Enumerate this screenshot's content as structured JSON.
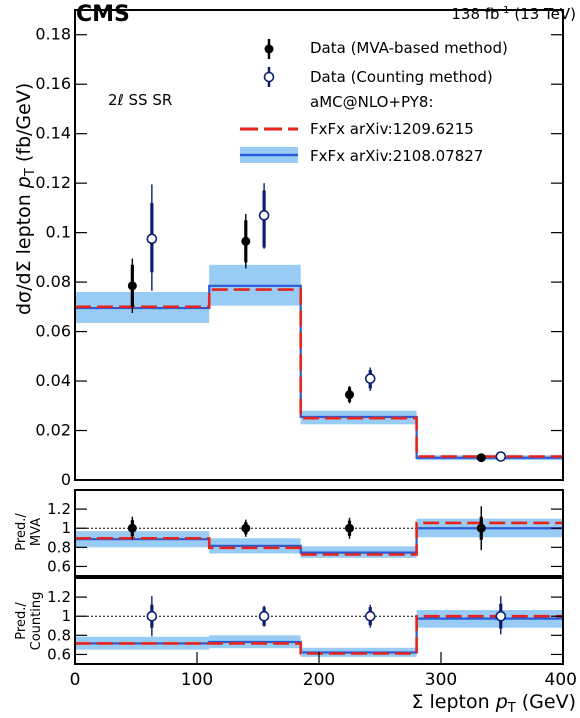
{
  "header": {
    "experiment": "CMS",
    "lumi_main": "138 fb",
    "lumi_sup": "-1",
    "lumi_tail": " (13 TeV)"
  },
  "colors": {
    "data_mva": "#000000",
    "data_counting": "#0b1f6b",
    "fxfx_old": "#e8231b",
    "fxfx_new_line": "#2a5bd7",
    "fxfx_new_band": "#99ccf5"
  },
  "chart_data": [
    {
      "type": "step",
      "panel": "main",
      "annotation": "2ℓ SS SR",
      "ylabel_parts": [
        "dσ/dΣ lepton ",
        "p",
        "T",
        " (fb/GeV)"
      ],
      "ylim": [
        0,
        0.19
      ],
      "yticks": [
        0,
        0.02,
        0.04,
        0.06,
        0.08,
        0.1,
        0.12,
        0.14,
        0.16,
        0.18
      ],
      "ytick_labels": [
        "0",
        "0.02",
        "0.04",
        "0.06",
        "0.08",
        "0.1",
        "0.12",
        "0.14",
        "0.16",
        "0.18"
      ],
      "xlim": [
        0,
        400
      ],
      "bin_edges": [
        0,
        110,
        185,
        280,
        400
      ],
      "legend_placement": "top-right",
      "legend": [
        {
          "kind": "point_filled",
          "label": "Data (MVA-based method)"
        },
        {
          "kind": "point_open",
          "label": "Data (Counting method)"
        },
        {
          "kind": "text",
          "label": "aMC@NLO+PY8:"
        },
        {
          "kind": "dashed",
          "label": "FxFx arXiv:1209.6215"
        },
        {
          "kind": "band",
          "label": "FxFx arXiv:2108.07827"
        }
      ],
      "series": [
        {
          "name": "FxFx arXiv:2108.07827",
          "style": "band",
          "values": [
            0.0695,
            0.0785,
            0.0255,
            0.009
          ],
          "band_low": [
            0.0635,
            0.0705,
            0.0225,
            0.008
          ],
          "band_high": [
            0.076,
            0.087,
            0.028,
            0.01
          ]
        },
        {
          "name": "FxFx arXiv:1209.6215",
          "style": "dashed",
          "values": [
            0.07,
            0.077,
            0.025,
            0.0095
          ]
        },
        {
          "name": "Data (MVA-based method)",
          "style": "filled",
          "x": [
            47,
            140,
            225,
            333
          ],
          "y": [
            0.0785,
            0.0965,
            0.0345,
            0.009
          ],
          "stat_low": [
            0.07,
            0.088,
            0.0315,
            0.008
          ],
          "stat_high": [
            0.087,
            0.105,
            0.0375,
            0.01
          ],
          "tot_low": [
            0.0675,
            0.0855,
            0.031,
            0.0076
          ],
          "tot_high": [
            0.0895,
            0.1075,
            0.038,
            0.0104
          ]
        },
        {
          "name": "Data (Counting method)",
          "style": "open",
          "x": [
            63,
            155,
            242,
            349
          ],
          "y": [
            0.0975,
            0.107,
            0.041,
            0.0095
          ],
          "stat_low": [
            0.084,
            0.094,
            0.037,
            0.0084
          ],
          "stat_high": [
            0.112,
            0.117,
            0.0445,
            0.0106
          ],
          "tot_low": [
            0.0765,
            0.0935,
            0.036,
            0.008
          ],
          "tot_high": [
            0.1195,
            0.12,
            0.0455,
            0.011
          ]
        }
      ]
    },
    {
      "type": "step",
      "panel": "ratio_mva",
      "ylabel_lines": [
        "Pred./",
        "MVA"
      ],
      "ylim": [
        0.5,
        1.4
      ],
      "yticks": [
        0.6,
        0.8,
        1.0,
        1.2
      ],
      "ytick_labels": [
        "0.6",
        "0.8",
        "1",
        "1.2"
      ],
      "reference_line": 1,
      "bin_edges": [
        0,
        110,
        185,
        280,
        400
      ],
      "series": [
        {
          "name": "FxFx arXiv:2108.07827",
          "style": "band",
          "values": [
            0.885,
            0.815,
            0.745,
            1.0
          ],
          "band_low": [
            0.8,
            0.735,
            0.69,
            0.905
          ],
          "band_high": [
            0.97,
            0.895,
            0.81,
            1.1
          ]
        },
        {
          "name": "FxFx arXiv:1209.6215",
          "style": "dashed",
          "values": [
            0.895,
            0.795,
            0.725,
            1.055
          ]
        },
        {
          "name": "Data (MVA-based method)",
          "style": "filled",
          "x": [
            47,
            140,
            225,
            333
          ],
          "y": [
            1.0,
            1.0,
            1.0,
            1.0
          ],
          "stat_low": [
            0.915,
            0.935,
            0.92,
            0.88
          ],
          "stat_high": [
            1.085,
            1.065,
            1.08,
            1.12
          ],
          "tot_low": [
            0.88,
            0.91,
            0.89,
            0.77
          ],
          "tot_high": [
            1.12,
            1.09,
            1.11,
            1.23
          ]
        }
      ]
    },
    {
      "type": "step",
      "panel": "ratio_counting",
      "ylabel_lines": [
        "Pred./",
        "Counting"
      ],
      "ylim": [
        0.5,
        1.4
      ],
      "yticks": [
        0.6,
        0.8,
        1.0,
        1.2
      ],
      "ytick_labels": [
        "0.6",
        "0.8",
        "1",
        "1.2"
      ],
      "reference_line": 1,
      "xlabel_parts": [
        "Σ lepton ",
        "p",
        "T",
        " (GeV)"
      ],
      "xlim": [
        0,
        400
      ],
      "xticks": [
        0,
        100,
        200,
        300,
        400
      ],
      "xtick_labels": [
        "0",
        "100",
        "200",
        "300",
        "400"
      ],
      "bin_edges": [
        0,
        110,
        185,
        280,
        400
      ],
      "series": [
        {
          "name": "FxFx arXiv:2108.07827",
          "style": "band",
          "values": [
            0.715,
            0.73,
            0.62,
            0.975
          ],
          "band_low": [
            0.65,
            0.665,
            0.575,
            0.88
          ],
          "band_high": [
            0.785,
            0.8,
            0.67,
            1.065
          ]
        },
        {
          "name": "FxFx arXiv:1209.6215",
          "style": "dashed",
          "values": [
            0.715,
            0.715,
            0.61,
            1.0
          ]
        },
        {
          "name": "Data (Counting method)",
          "style": "open",
          "x": [
            63,
            155,
            242,
            349
          ],
          "y": [
            1.0,
            1.0,
            1.0,
            1.0
          ],
          "stat_low": [
            0.88,
            0.9,
            0.905,
            0.87
          ],
          "stat_high": [
            1.12,
            1.095,
            1.095,
            1.13
          ],
          "tot_low": [
            0.79,
            0.89,
            0.88,
            0.81
          ],
          "tot_high": [
            1.21,
            1.11,
            1.12,
            1.21
          ]
        }
      ]
    }
  ]
}
